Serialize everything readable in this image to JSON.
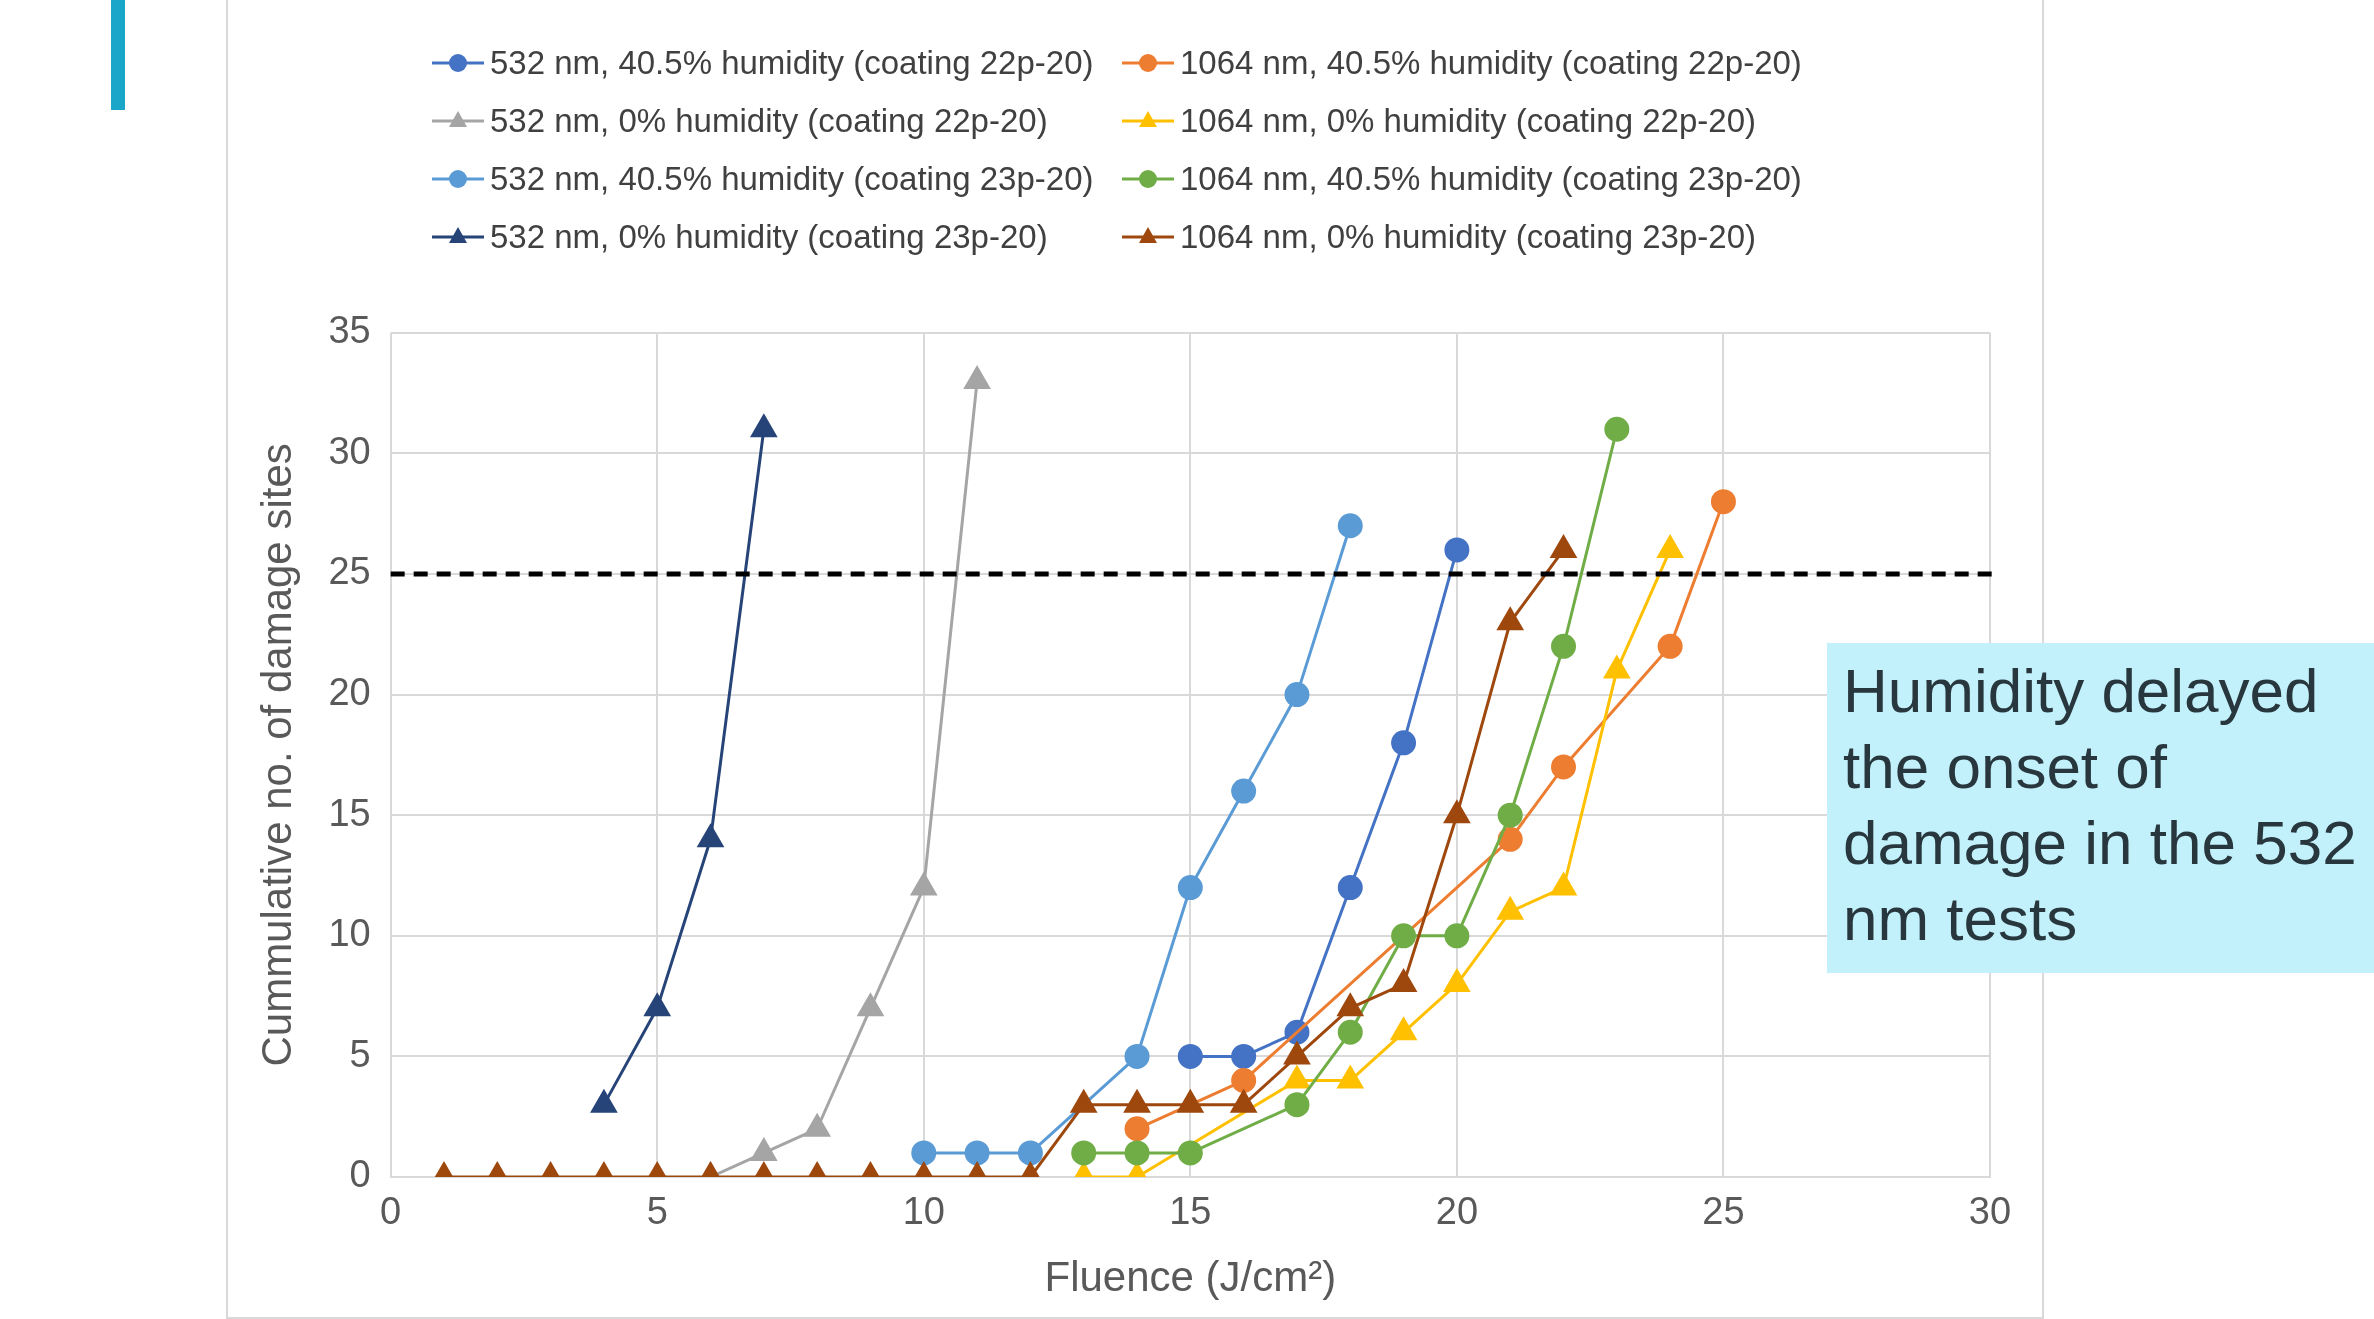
{
  "chart_data": {
    "type": "line",
    "xlabel": "Fluence (J/cm²)",
    "ylabel": "Cummulative no. of damage sites",
    "xlim": [
      0,
      30
    ],
    "xticks": [
      0,
      5,
      10,
      15,
      20,
      25,
      30
    ],
    "ylim": [
      0,
      35
    ],
    "yticks": [
      0,
      5,
      10,
      15,
      20,
      25,
      30,
      35
    ],
    "grid": true,
    "legend": "top",
    "line_style": "solid",
    "series": [
      {
        "name": "532 nm, 40.5% humidity (coating 22p-20)",
        "color": "#4472c4",
        "marker": "circle",
        "x": [
          15,
          16,
          17,
          18,
          19,
          20
        ],
        "values": [
          5,
          5,
          6,
          12,
          18,
          26
        ]
      },
      {
        "name": "1064 nm, 40.5% humidity (coating 22p-20)",
        "color": "#ed7d31",
        "marker": "circle",
        "x": [
          14,
          15,
          16,
          17,
          18,
          19,
          20,
          21,
          22,
          23,
          24,
          25
        ],
        "values": [
          2,
          null,
          4,
          null,
          null,
          null,
          null,
          14,
          17,
          null,
          22,
          28
        ]
      },
      {
        "name": "532 nm, 0% humidity (coating 22p-20)",
        "color": "#a5a5a5",
        "marker": "triangle",
        "x": [
          6,
          7,
          8,
          9,
          10,
          11
        ],
        "values": [
          0,
          1,
          2,
          7,
          12,
          33
        ]
      },
      {
        "name": "1064 nm, 0% humidity (coating 22p-20)",
        "color": "#ffc000",
        "marker": "triangle",
        "x": [
          13,
          14,
          15,
          16,
          17,
          18,
          19,
          20,
          21,
          22,
          23,
          24
        ],
        "values": [
          0,
          0,
          null,
          null,
          4,
          4,
          6,
          8,
          11,
          12,
          21,
          26
        ]
      },
      {
        "name": "532 nm, 40.5% humidity (coating 23p-20)",
        "color": "#5b9bd5",
        "marker": "circle",
        "x": [
          10,
          11,
          12,
          13,
          14,
          15,
          16,
          17,
          18
        ],
        "values": [
          1,
          1,
          1,
          null,
          5,
          12,
          16,
          20,
          27
        ]
      },
      {
        "name": "1064 nm, 40.5% humidity (coating 23p-20)",
        "color": "#70ad47",
        "marker": "circle",
        "x": [
          13,
          14,
          15,
          16,
          17,
          18,
          19,
          20,
          21,
          22,
          23
        ],
        "values": [
          1,
          1,
          1,
          null,
          3,
          6,
          10,
          10,
          15,
          22,
          31
        ]
      },
      {
        "name": "532 nm, 0% humidity (coating 23p-20)",
        "color": "#264478",
        "marker": "triangle",
        "x": [
          4,
          5,
          6,
          7
        ],
        "values": [
          3,
          7,
          14,
          31
        ]
      },
      {
        "name": "1064 nm, 0% humidity (coating 23p-20)",
        "color": "#9e480e",
        "marker": "triangle",
        "x": [
          1,
          2,
          3,
          4,
          5,
          6,
          7,
          8,
          9,
          10,
          11,
          12,
          13,
          14,
          15,
          16,
          17,
          18,
          19,
          20,
          21,
          22
        ],
        "values": [
          0,
          0,
          0,
          0,
          0,
          0,
          0,
          0,
          0,
          0,
          0,
          0,
          3,
          3,
          3,
          3,
          5,
          7,
          8,
          15,
          23,
          26
        ]
      }
    ],
    "ref_lines": [
      {
        "axis": "y",
        "value": 25,
        "color": "#000000",
        "line_style": "dashed"
      }
    ],
    "annotations": [
      "Humidity delayed the onset of damage in the 532 nm tests"
    ]
  }
}
